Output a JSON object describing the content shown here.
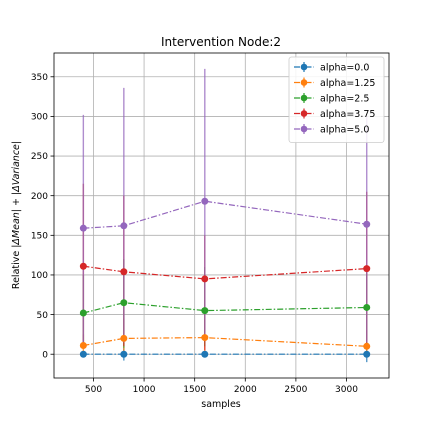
{
  "chart_data": {
    "type": "line",
    "title": "Intervention Node:2",
    "xlabel": "samples",
    "ylabel_parts": [
      "Relative |",
      "ΔMean",
      "| + |",
      "ΔVariance",
      "|"
    ],
    "xlim": [
      110,
      3420
    ],
    "ylim": [
      -30,
      380
    ],
    "xticks": [
      500,
      1000,
      1500,
      2000,
      2500,
      3000
    ],
    "yticks": [
      0,
      50,
      100,
      150,
      200,
      250,
      300,
      350
    ],
    "grid": true,
    "legend_position": "upper right",
    "x": [
      400,
      800,
      1600,
      3200
    ],
    "series": [
      {
        "name": "alpha=0.0",
        "color": "#1f77b4",
        "values": [
          0,
          0,
          0,
          0
        ],
        "err_low": [
          -4,
          -8,
          -4,
          -10
        ],
        "err_high": [
          4,
          8,
          4,
          10
        ]
      },
      {
        "name": "alpha=1.25",
        "color": "#ff7f0e",
        "values": [
          11,
          20,
          21,
          10
        ],
        "err_low": [
          2,
          2,
          2,
          1
        ],
        "err_high": [
          25,
          45,
          45,
          30
        ]
      },
      {
        "name": "alpha=2.5",
        "color": "#2ca02c",
        "values": [
          52,
          65,
          55,
          59
        ],
        "err_low": [
          10,
          8,
          10,
          10
        ],
        "err_high": [
          100,
          120,
          110,
          110
        ]
      },
      {
        "name": "alpha=3.75",
        "color": "#d62728",
        "values": [
          111,
          104,
          95,
          108
        ],
        "err_low": [
          8,
          10,
          5,
          10
        ],
        "err_high": [
          215,
          200,
          150,
          205
        ]
      },
      {
        "name": "alpha=5.0",
        "color": "#9467bd",
        "values": [
          159,
          162,
          193,
          164
        ],
        "err_low": [
          15,
          15,
          25,
          15
        ],
        "err_high": [
          302,
          336,
          360,
          300
        ]
      }
    ]
  }
}
